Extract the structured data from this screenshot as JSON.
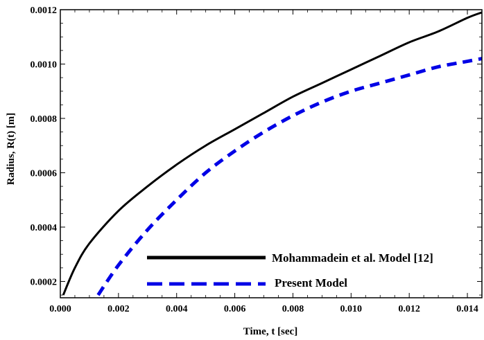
{
  "chart_data": {
    "type": "line",
    "title": "",
    "xlabel": "Time, t [sec]",
    "ylabel": "Radius,  R(t) [m]",
    "xlim": [
      0,
      0.0145
    ],
    "ylim": [
      0.00014,
      0.0012
    ],
    "x_ticks": [
      0.0,
      0.002,
      0.004,
      0.006,
      0.008,
      0.01,
      0.012,
      0.014
    ],
    "x_tick_labels": [
      "0.000",
      "0.002",
      "0.004",
      "0.006",
      "0.008",
      "0.010",
      "0.012",
      "0.014"
    ],
    "y_ticks": [
      0.0002,
      0.0004,
      0.0006,
      0.0008,
      0.001,
      0.0012
    ],
    "y_tick_labels": [
      "0.0002",
      "0.0004",
      "0.0006",
      "0.0008",
      "0.0010",
      "0.0012"
    ],
    "grid": false,
    "legend_position": "bottom-center",
    "series": [
      {
        "name": "Mohammadein et al. Model [12]",
        "color": "#000000",
        "style": "solid",
        "x": [
          0.0001,
          0.0005,
          0.001,
          0.002,
          0.003,
          0.004,
          0.005,
          0.006,
          0.007,
          0.008,
          0.009,
          0.01,
          0.011,
          0.012,
          0.013,
          0.014,
          0.0145
        ],
        "y": [
          0.00015,
          0.00025,
          0.00034,
          0.00046,
          0.00055,
          0.00063,
          0.0007,
          0.00076,
          0.00082,
          0.00088,
          0.00093,
          0.00098,
          0.00103,
          0.00108,
          0.00112,
          0.00117,
          0.00119
        ]
      },
      {
        "name": "Present Model",
        "color": "#0000e6",
        "style": "dashed",
        "x": [
          0.0013,
          0.002,
          0.003,
          0.004,
          0.005,
          0.006,
          0.007,
          0.008,
          0.009,
          0.01,
          0.011,
          0.012,
          0.013,
          0.014,
          0.0145
        ],
        "y": [
          0.00015,
          0.00026,
          0.00039,
          0.0005,
          0.0006,
          0.00068,
          0.00075,
          0.00081,
          0.00086,
          0.0009,
          0.00093,
          0.00096,
          0.00099,
          0.00101,
          0.00102
        ]
      }
    ]
  }
}
